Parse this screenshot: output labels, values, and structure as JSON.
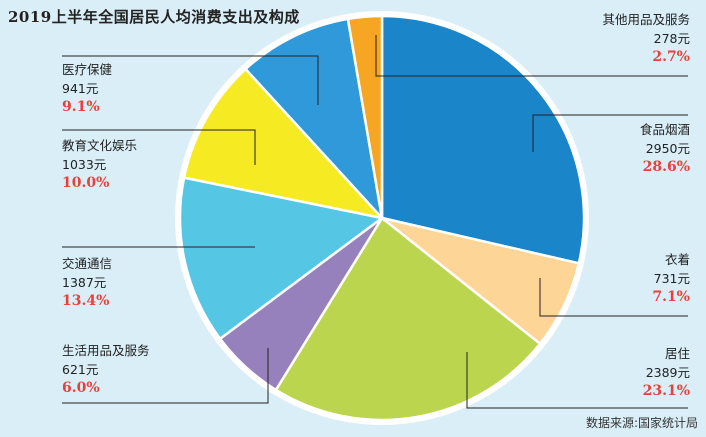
{
  "title": "2019上半年全国居民人均消费支出及构成",
  "source": "数据来源:国家统计局",
  "chart_data": {
    "type": "pie",
    "title": "2019上半年全国居民人均消费支出及构成",
    "start_angle_deg": 0,
    "direction": "clockwise",
    "slices": [
      {
        "name": "食品烟酒",
        "value": "2950元",
        "amount": 2950,
        "percent_label": "28.6%",
        "percent": 28.6,
        "color": "#1a85c8"
      },
      {
        "name": "衣着",
        "value": "731元",
        "amount": 731,
        "percent_label": "7.1%",
        "percent": 7.1,
        "color": "#fdd597"
      },
      {
        "name": "居住",
        "value": "2389元",
        "amount": 2389,
        "percent_label": "23.1%",
        "percent": 23.1,
        "color": "#bcd54e"
      },
      {
        "name": "生活用品及服务",
        "value": "621元",
        "amount": 621,
        "percent_label": "6.0%",
        "percent": 6.0,
        "color": "#9681bc"
      },
      {
        "name": "交通通信",
        "value": "1387元",
        "amount": 1387,
        "percent_label": "13.4%",
        "percent": 13.4,
        "color": "#55c6e4"
      },
      {
        "name": "教育文化娱乐",
        "value": "1033元",
        "amount": 1033,
        "percent_label": "10.0%",
        "percent": 10.0,
        "color": "#f6ea22"
      },
      {
        "name": "医疗保健",
        "value": "941元",
        "amount": 941,
        "percent_label": "9.1%",
        "percent": 9.1,
        "color": "#3099d9"
      },
      {
        "name": "其他用品及服务",
        "value": "278元",
        "amount": 278,
        "percent_label": "2.7%",
        "percent": 2.7,
        "color": "#f6a623"
      }
    ]
  }
}
